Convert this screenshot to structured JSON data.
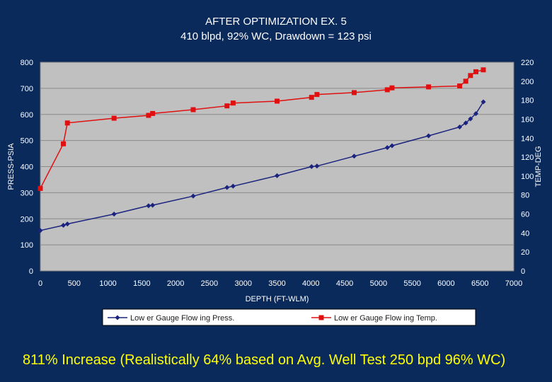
{
  "chart_data": {
    "type": "line",
    "title": "AFTER OPTIMIZATION EX. 5",
    "subtitle": "410 blpd, 92% WC, Drawdown = 123 psi",
    "xlabel": "DEPTH (FT-WLM)",
    "ylabel": "PRESS-PSIA",
    "y2label": "TEMP-DEG",
    "xlim": [
      0,
      7000
    ],
    "ylim": [
      0,
      800
    ],
    "y2lim": [
      0,
      220
    ],
    "xticks": [
      "0",
      "500",
      "1000",
      "1500",
      "2000",
      "2500",
      "3000",
      "3500",
      "4000",
      "4500",
      "5000",
      "5500",
      "6000",
      "6500",
      "7000"
    ],
    "yticks": [
      "0",
      "100",
      "200",
      "300",
      "400",
      "500",
      "600",
      "700",
      "800"
    ],
    "y2ticks": [
      "0",
      "20",
      "40",
      "60",
      "80",
      "100",
      "120",
      "140",
      "160",
      "180",
      "200",
      "220"
    ],
    "grid": true,
    "series": [
      {
        "name": "Low er Gauge Flow ing Press.",
        "axis": "left",
        "color": "#1a237e",
        "marker": "diamond",
        "x": [
          0,
          340,
          400,
          1090,
          1600,
          1660,
          2260,
          2760,
          2850,
          3500,
          4010,
          4090,
          4640,
          5130,
          5200,
          5740,
          6200,
          6290,
          6360,
          6440,
          6550
        ],
        "y": [
          155,
          175,
          180,
          218,
          250,
          252,
          287,
          320,
          325,
          365,
          400,
          402,
          440,
          473,
          480,
          518,
          552,
          567,
          583,
          603,
          648
        ]
      },
      {
        "name": "Low er Gauge Flow ing Temp.",
        "axis": "right",
        "color": "#e01010",
        "marker": "square",
        "x": [
          0,
          340,
          400,
          1090,
          1600,
          1660,
          2260,
          2760,
          2850,
          3500,
          4010,
          4090,
          4640,
          5130,
          5200,
          5740,
          6200,
          6290,
          6360,
          6440,
          6550
        ],
        "y": [
          87,
          134,
          156,
          161,
          164,
          166,
          170,
          174,
          177,
          179,
          183,
          186,
          188,
          191,
          193,
          194,
          195,
          200,
          206,
          210,
          212
        ]
      }
    ]
  },
  "caption": "811% Increase (Realistically 64% based on Avg. Well Test 250 bpd 96% WC)",
  "colors": {
    "background": "#0a2a5c",
    "plot_area": "#c0c0c0",
    "caption": "#ffff00"
  }
}
